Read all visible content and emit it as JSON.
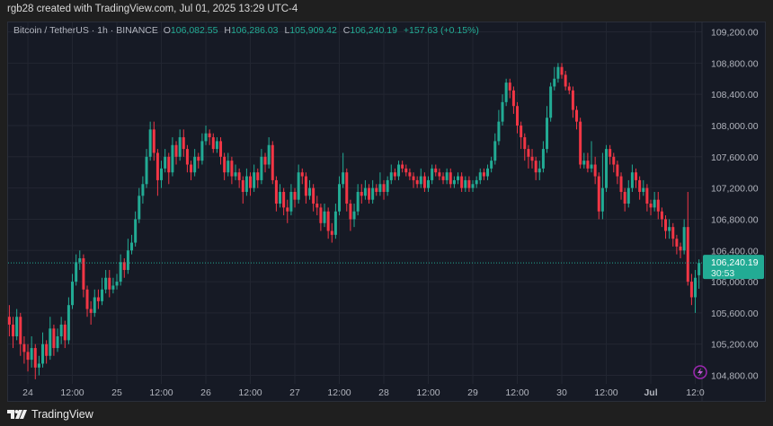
{
  "header": {
    "credit": "rgb28 created with TradingView.com, Jul 01, 2025 13:29 UTC-4"
  },
  "legend": {
    "symbol": "Bitcoin / TetherUS · 1h · BINANCE",
    "o_label": "O",
    "open": "106,082.55",
    "h_label": "H",
    "high": "106,286.03",
    "l_label": "L",
    "low": "105,909.42",
    "c_label": "C",
    "close": "106,240.19",
    "change": "+157.63 (+0.15%)"
  },
  "price_tag": {
    "price": "106,240.19",
    "countdown": "30:53"
  },
  "footer": {
    "brand": "TradingView"
  },
  "colors": {
    "up": "#22ab94",
    "down": "#f23645",
    "background": "#161a25",
    "grid": "#232632",
    "axis_text": "#b2b5be"
  },
  "chart_data": {
    "type": "candlestick",
    "interval": "1h",
    "ylim": [
      104473,
      109321
    ],
    "grid": true,
    "y_ticks": [
      109200,
      108800,
      108400,
      108000,
      107600,
      107200,
      106800,
      106400,
      106000,
      105600,
      105200,
      104800
    ],
    "y_tick_labels": [
      "109,200.00",
      "108,800.00",
      "108,400.00",
      "108,000.00",
      "107,600.00",
      "107,200.00",
      "106,800.00",
      "106,400.00",
      "106,000.00",
      "105,600.00",
      "105,200.00",
      "104,800.00"
    ],
    "x_start": "Jun 23 19:00",
    "x_tick_labels": [
      {
        "label": "24",
        "hour": 5
      },
      {
        "label": "12:00",
        "hour": 17
      },
      {
        "label": "25",
        "hour": 29
      },
      {
        "label": "12:00",
        "hour": 41
      },
      {
        "label": "26",
        "hour": 53
      },
      {
        "label": "12:00",
        "hour": 65
      },
      {
        "label": "27",
        "hour": 77
      },
      {
        "label": "12:00",
        "hour": 89
      },
      {
        "label": "28",
        "hour": 101
      },
      {
        "label": "12:00",
        "hour": 113
      },
      {
        "label": "29",
        "hour": 125
      },
      {
        "label": "12:00",
        "hour": 137
      },
      {
        "label": "30",
        "hour": 149
      },
      {
        "label": "12:00",
        "hour": 161
      },
      {
        "label": "Jul",
        "hour": 173
      },
      {
        "label": "12:0",
        "hour": 185
      }
    ],
    "last_price": 106240.19,
    "candles_ohlc": [
      [
        105550,
        105700,
        105300,
        105450
      ],
      [
        105450,
        105550,
        105150,
        105300
      ],
      [
        105300,
        105650,
        105250,
        105550
      ],
      [
        105550,
        105600,
        105050,
        105200
      ],
      [
        105200,
        105300,
        104950,
        105100
      ],
      [
        105100,
        105200,
        104850,
        105000
      ],
      [
        105000,
        105300,
        104900,
        105150
      ],
      [
        105150,
        105200,
        104750,
        104900
      ],
      [
        104900,
        105050,
        104800,
        104950
      ],
      [
        104950,
        105350,
        104900,
        105200
      ],
      [
        105200,
        105250,
        104950,
        105050
      ],
      [
        105050,
        105550,
        105000,
        105400
      ],
      [
        105400,
        105450,
        105050,
        105150
      ],
      [
        105150,
        105400,
        105100,
        105300
      ],
      [
        105300,
        105550,
        105200,
        105450
      ],
      [
        105450,
        105500,
        105150,
        105250
      ],
      [
        105250,
        105800,
        105200,
        105700
      ],
      [
        105700,
        106100,
        105650,
        106000
      ],
      [
        106000,
        106350,
        105950,
        106250
      ],
      [
        106250,
        106400,
        106150,
        106300
      ],
      [
        106300,
        106350,
        105800,
        105900
      ],
      [
        105900,
        105950,
        105550,
        105650
      ],
      [
        105650,
        105750,
        105450,
        105600
      ],
      [
        105600,
        105900,
        105550,
        105800
      ],
      [
        105800,
        105900,
        105650,
        105750
      ],
      [
        105750,
        106050,
        105700,
        105900
      ],
      [
        105900,
        106150,
        105850,
        106050
      ],
      [
        106050,
        106150,
        105800,
        105900
      ],
      [
        105900,
        106050,
        105850,
        105950
      ],
      [
        105950,
        106100,
        105900,
        106000
      ],
      [
        106000,
        106350,
        105950,
        106250
      ],
      [
        106250,
        106300,
        106050,
        106150
      ],
      [
        106150,
        106550,
        106100,
        106400
      ],
      [
        106400,
        106600,
        106350,
        106500
      ],
      [
        106500,
        106900,
        106450,
        106800
      ],
      [
        106800,
        107200,
        106750,
        107100
      ],
      [
        107100,
        107350,
        107000,
        107250
      ],
      [
        107250,
        107700,
        107200,
        107600
      ],
      [
        107600,
        108050,
        107550,
        107950
      ],
      [
        107950,
        108050,
        107550,
        107650
      ],
      [
        107650,
        107700,
        107100,
        107300
      ],
      [
        107300,
        107550,
        107200,
        107450
      ],
      [
        107450,
        107700,
        107400,
        107600
      ],
      [
        107600,
        107650,
        107250,
        107400
      ],
      [
        107400,
        107850,
        107350,
        107750
      ],
      [
        107750,
        107800,
        107500,
        107600
      ],
      [
        107600,
        107950,
        107550,
        107850
      ],
      [
        107850,
        107950,
        107600,
        107700
      ],
      [
        107700,
        107750,
        107400,
        107500
      ],
      [
        107500,
        107550,
        107300,
        107400
      ],
      [
        107400,
        107700,
        107350,
        107600
      ],
      [
        107600,
        107650,
        107450,
        107550
      ],
      [
        107550,
        107900,
        107500,
        107800
      ],
      [
        107800,
        108000,
        107750,
        107900
      ],
      [
        107900,
        107950,
        107750,
        107850
      ],
      [
        107850,
        107900,
        107650,
        107700
      ],
      [
        107700,
        107850,
        107650,
        107800
      ],
      [
        107800,
        107850,
        107500,
        107600
      ],
      [
        107600,
        107650,
        107300,
        107400
      ],
      [
        107400,
        107650,
        107350,
        107550
      ],
      [
        107550,
        107600,
        107250,
        107350
      ],
      [
        107350,
        107500,
        107300,
        107400
      ],
      [
        107400,
        107450,
        107200,
        107300
      ],
      [
        107300,
        107350,
        107000,
        107150
      ],
      [
        107150,
        107450,
        107100,
        107350
      ],
      [
        107350,
        107400,
        107100,
        107200
      ],
      [
        107200,
        107500,
        107150,
        107400
      ],
      [
        107400,
        107450,
        107200,
        107300
      ],
      [
        107300,
        107700,
        107250,
        107600
      ],
      [
        107600,
        107650,
        107400,
        107500
      ],
      [
        107500,
        107850,
        107450,
        107750
      ],
      [
        107750,
        107800,
        107250,
        107300
      ],
      [
        107300,
        107350,
        106900,
        107000
      ],
      [
        107000,
        107250,
        106950,
        107150
      ],
      [
        107150,
        107200,
        106850,
        106950
      ],
      [
        106950,
        107050,
        106750,
        106900
      ],
      [
        106900,
        107250,
        106850,
        107150
      ],
      [
        107150,
        107200,
        106950,
        107050
      ],
      [
        107050,
        107500,
        107000,
        107400
      ],
      [
        107400,
        107450,
        107250,
        107350
      ],
      [
        107350,
        107400,
        107000,
        107100
      ],
      [
        107100,
        107300,
        107050,
        107200
      ],
      [
        107200,
        107250,
        106900,
        107000
      ],
      [
        107000,
        107100,
        106850,
        106950
      ],
      [
        106950,
        107000,
        106650,
        106750
      ],
      [
        106750,
        107000,
        106700,
        106900
      ],
      [
        106900,
        106950,
        106550,
        106650
      ],
      [
        106650,
        106750,
        106500,
        106600
      ],
      [
        106600,
        107000,
        106550,
        106900
      ],
      [
        106900,
        107350,
        106850,
        107250
      ],
      [
        107250,
        107650,
        107200,
        107400
      ],
      [
        107400,
        107450,
        106900,
        107000
      ],
      [
        107000,
        107050,
        106650,
        106800
      ],
      [
        106800,
        107000,
        106700,
        106900
      ],
      [
        106900,
        107250,
        106850,
        107150
      ],
      [
        107150,
        107250,
        107000,
        107100
      ],
      [
        107100,
        107300,
        107050,
        107200
      ],
      [
        107200,
        107250,
        107000,
        107050
      ],
      [
        107050,
        107300,
        107000,
        107200
      ],
      [
        107200,
        107250,
        107100,
        107150
      ],
      [
        107150,
        107400,
        107100,
        107250
      ],
      [
        107250,
        107300,
        107050,
        107150
      ],
      [
        107150,
        107350,
        107100,
        107300
      ],
      [
        107300,
        107500,
        107250,
        107400
      ],
      [
        107400,
        107450,
        107300,
        107350
      ],
      [
        107350,
        107550,
        107300,
        107500
      ],
      [
        107500,
        107550,
        107400,
        107450
      ],
      [
        107450,
        107500,
        107350,
        107400
      ],
      [
        107400,
        107450,
        107300,
        107350
      ],
      [
        107350,
        107400,
        107200,
        107300
      ],
      [
        107300,
        107350,
        107200,
        107250
      ],
      [
        107250,
        107450,
        107200,
        107350
      ],
      [
        107350,
        107400,
        107150,
        107200
      ],
      [
        107200,
        107350,
        107150,
        107300
      ],
      [
        107300,
        107500,
        107250,
        107450
      ],
      [
        107450,
        107500,
        107350,
        107400
      ],
      [
        107400,
        107450,
        107300,
        107350
      ],
      [
        107350,
        107400,
        107250,
        107300
      ],
      [
        107300,
        107450,
        107250,
        107400
      ],
      [
        107400,
        107450,
        107200,
        107250
      ],
      [
        107250,
        107350,
        107200,
        107300
      ],
      [
        107300,
        107400,
        107250,
        107350
      ],
      [
        107350,
        107400,
        107150,
        107200
      ],
      [
        107200,
        107350,
        107150,
        107300
      ],
      [
        107300,
        107350,
        107150,
        107200
      ],
      [
        107200,
        107300,
        107150,
        107250
      ],
      [
        107250,
        107350,
        107200,
        107300
      ],
      [
        107300,
        107450,
        107250,
        107400
      ],
      [
        107400,
        107450,
        107300,
        107350
      ],
      [
        107350,
        107500,
        107300,
        107450
      ],
      [
        107450,
        107600,
        107400,
        107550
      ],
      [
        107550,
        107900,
        107500,
        107800
      ],
      [
        107800,
        108200,
        107750,
        108050
      ],
      [
        108050,
        108400,
        108000,
        108300
      ],
      [
        108300,
        108600,
        108250,
        108550
      ],
      [
        108550,
        108600,
        108350,
        108450
      ],
      [
        108450,
        108500,
        108150,
        108250
      ],
      [
        108250,
        108300,
        107900,
        108000
      ],
      [
        108000,
        108050,
        107700,
        107850
      ],
      [
        107850,
        107900,
        107550,
        107700
      ],
      [
        107700,
        107750,
        107450,
        107600
      ],
      [
        107600,
        107700,
        107450,
        107550
      ],
      [
        107550,
        107600,
        107300,
        107400
      ],
      [
        107400,
        107550,
        107300,
        107450
      ],
      [
        107450,
        107800,
        107400,
        107700
      ],
      [
        107700,
        108250,
        107650,
        108100
      ],
      [
        108100,
        108550,
        108050,
        108500
      ],
      [
        108500,
        108750,
        108450,
        108600
      ],
      [
        108600,
        108800,
        108550,
        108750
      ],
      [
        108750,
        108800,
        108600,
        108650
      ],
      [
        108650,
        108700,
        108450,
        108500
      ],
      [
        108500,
        108550,
        108400,
        108450
      ],
      [
        108450,
        108500,
        108100,
        108200
      ],
      [
        108200,
        108250,
        107950,
        108050
      ],
      [
        108050,
        108100,
        107450,
        107500
      ],
      [
        107500,
        107650,
        107450,
        107550
      ],
      [
        107550,
        107650,
        107400,
        107450
      ],
      [
        107450,
        107800,
        107400,
        107500
      ],
      [
        107500,
        107600,
        107250,
        107350
      ],
      [
        107350,
        107400,
        106800,
        106900
      ],
      [
        106900,
        107650,
        106800,
        107200
      ],
      [
        107200,
        107750,
        107150,
        107700
      ],
      [
        107700,
        107750,
        107500,
        107600
      ],
      [
        107600,
        107650,
        107400,
        107500
      ],
      [
        107500,
        107550,
        107250,
        107350
      ],
      [
        107350,
        107400,
        107050,
        107150
      ],
      [
        107150,
        107200,
        106900,
        107000
      ],
      [
        107000,
        107300,
        106950,
        107200
      ],
      [
        107200,
        107500,
        107150,
        107400
      ],
      [
        107400,
        107450,
        107200,
        107300
      ],
      [
        107300,
        107350,
        107050,
        107150
      ],
      [
        107150,
        107300,
        107100,
        107200
      ],
      [
        107200,
        107250,
        106900,
        107000
      ],
      [
        107000,
        107050,
        106850,
        106950
      ],
      [
        106950,
        107150,
        106900,
        107050
      ],
      [
        107050,
        107150,
        106800,
        106900
      ],
      [
        106900,
        106950,
        106700,
        106800
      ],
      [
        106800,
        106850,
        106550,
        106650
      ],
      [
        106650,
        106800,
        106550,
        106700
      ],
      [
        106700,
        106750,
        106450,
        106550
      ],
      [
        106550,
        106600,
        106350,
        106450
      ],
      [
        106450,
        106500,
        106300,
        106400
      ],
      [
        106400,
        106800,
        106350,
        106700
      ],
      [
        106700,
        107150,
        105950,
        106000
      ],
      [
        106000,
        106100,
        105700,
        105800
      ],
      [
        105800,
        106150,
        105600,
        106050
      ],
      [
        106082.55,
        106286.03,
        105909.42,
        106240.19
      ]
    ]
  }
}
